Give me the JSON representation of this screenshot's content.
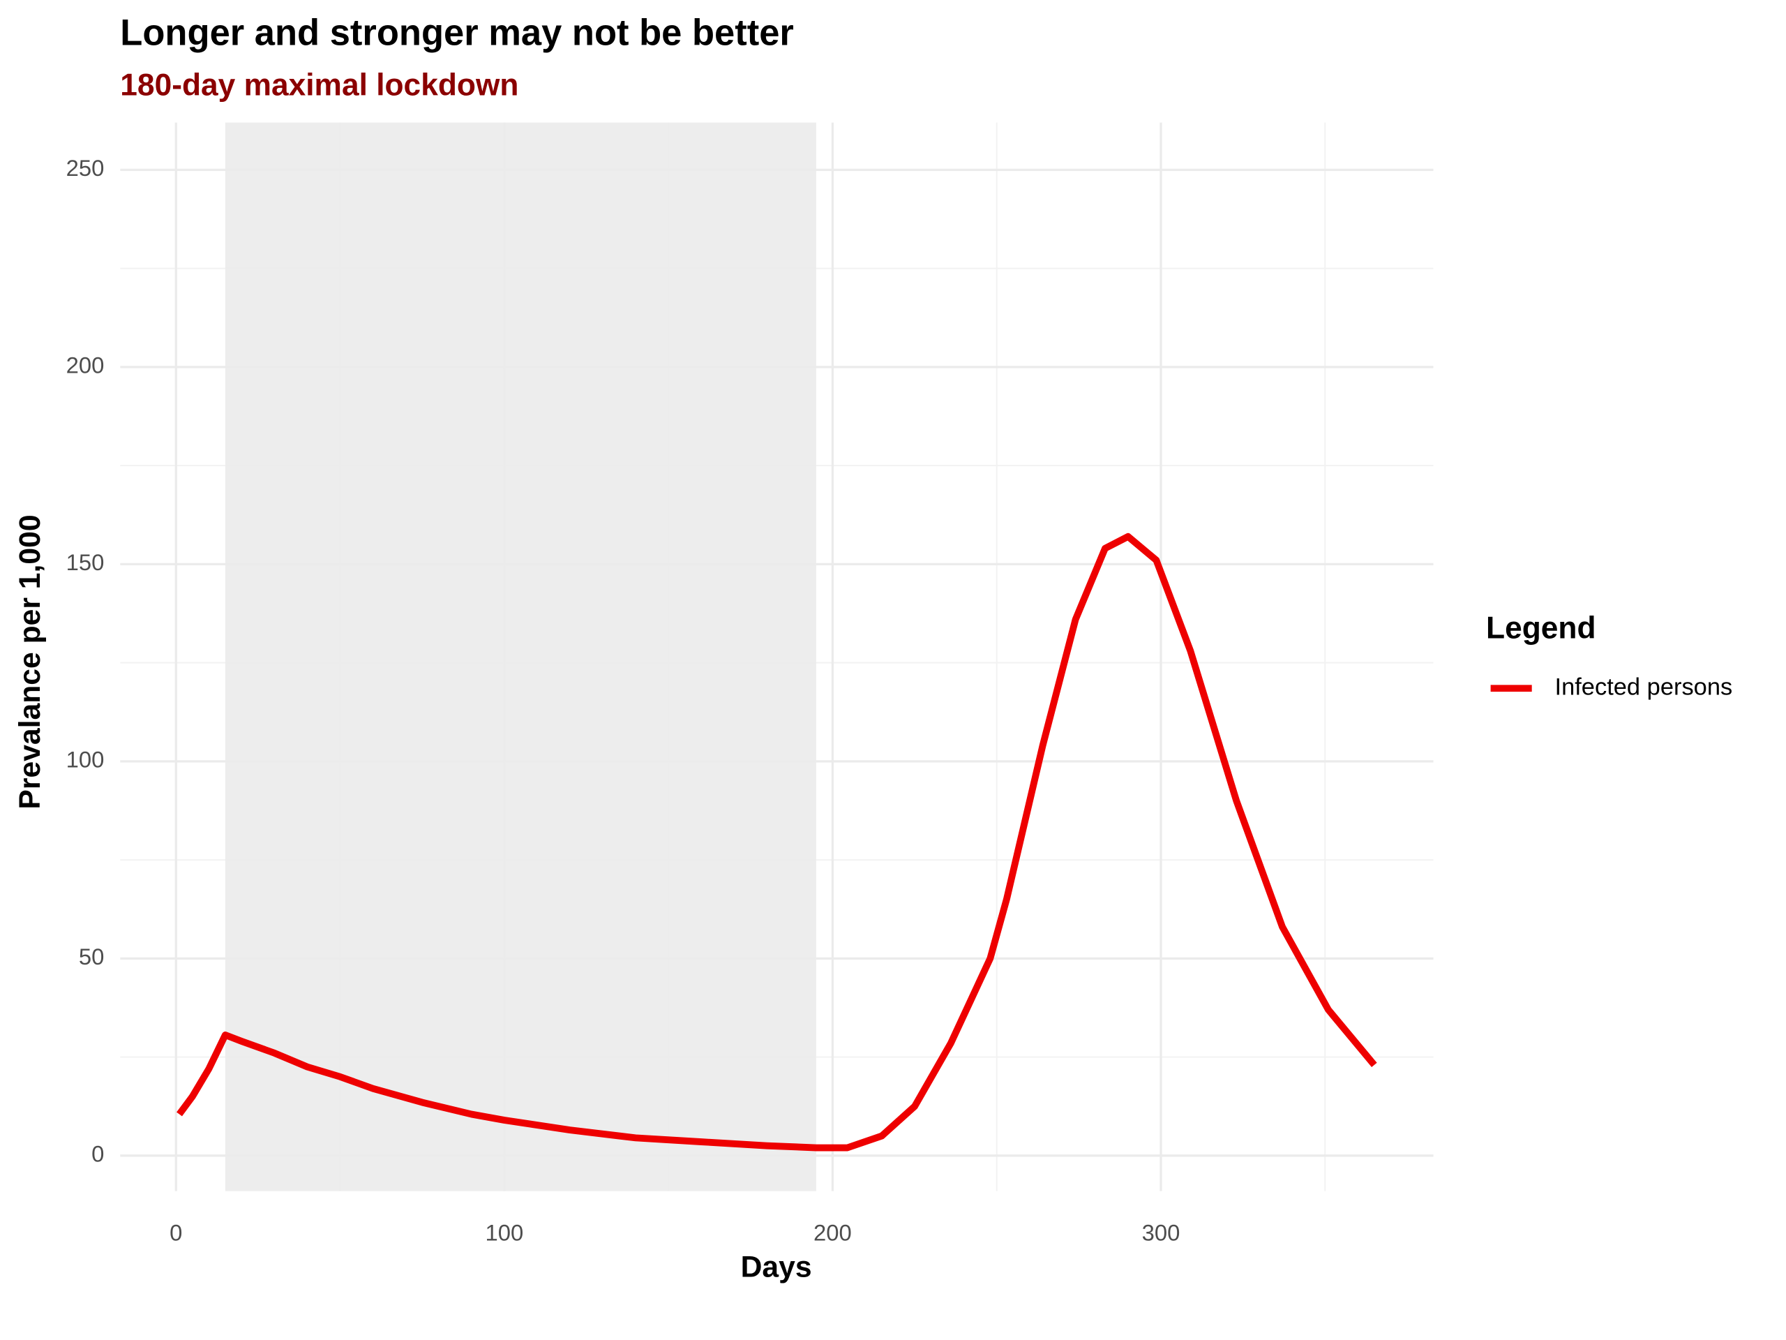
{
  "chart_data": {
    "type": "line",
    "title": "Longer and stronger may not be better",
    "subtitle": "180-day maximal lockdown",
    "x_label": "Days",
    "y_label": "Prevalance per 1,000",
    "legend_title": "Legend",
    "legend_position": "right",
    "highlight": {
      "xmin": 15,
      "xmax": 195,
      "color": "#ebebeb"
    },
    "x": [
      1,
      5,
      10,
      15,
      20,
      30,
      40,
      50,
      60,
      75,
      90,
      100,
      120,
      140,
      160,
      180,
      195,
      200,
      204.5,
      215,
      225,
      236,
      248,
      253,
      264,
      274,
      283,
      290,
      298.6,
      309,
      323,
      337,
      351,
      365
    ],
    "series": [
      {
        "name": "Infected persons",
        "color": "#ee0000",
        "values": [
          10.5,
          15,
          22,
          30.6,
          29,
          26,
          22.5,
          20,
          17,
          13.5,
          10.5,
          9,
          6.5,
          4.5,
          3.5,
          2.5,
          2,
          2,
          2,
          5,
          12.5,
          28.5,
          50,
          65,
          104,
          136,
          154,
          157,
          151,
          128,
          90,
          58,
          37,
          23
        ]
      }
    ],
    "xlim": [
      -17,
      383
    ],
    "xticks": [
      0,
      100,
      200,
      300
    ],
    "xminor": [
      50,
      150,
      250,
      350
    ],
    "ylim": [
      -9,
      262
    ],
    "yticks": [
      0,
      50,
      100,
      150,
      200,
      250
    ],
    "yminor": [
      25,
      75,
      125,
      175,
      225
    ],
    "grid": true
  }
}
